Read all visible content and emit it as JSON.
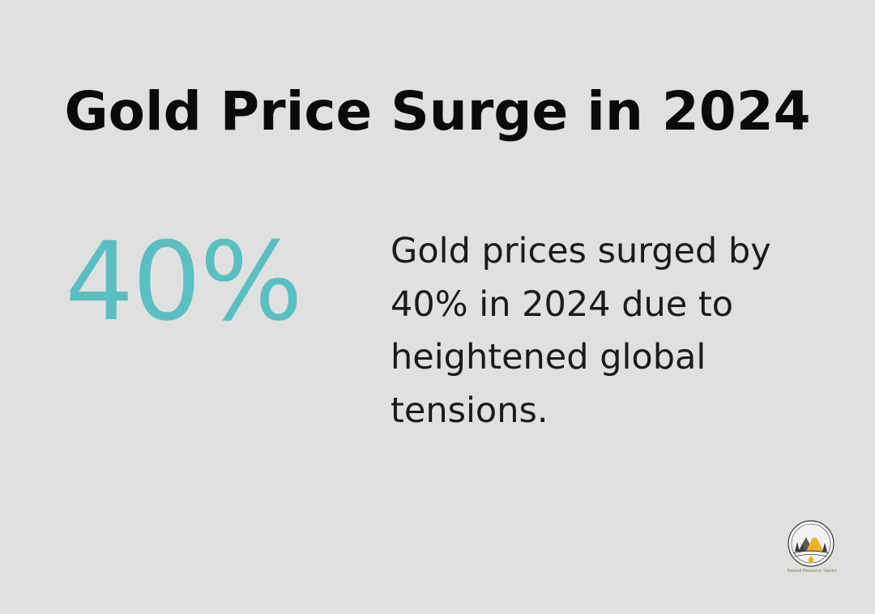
{
  "title": "Gold Price Surge in 2024",
  "stat": {
    "value": "40%",
    "description": "Gold prices surged by 40% in 2024 due to heightened global tensions."
  },
  "logo": {
    "text": "Natural Resource Stocks",
    "icon": "mountain-forest-badge-icon"
  },
  "colors": {
    "background": "#dfe1e0",
    "accent": "#5bbfc2",
    "title": "#0a0a0a",
    "logo_gold": "#e8b526"
  }
}
